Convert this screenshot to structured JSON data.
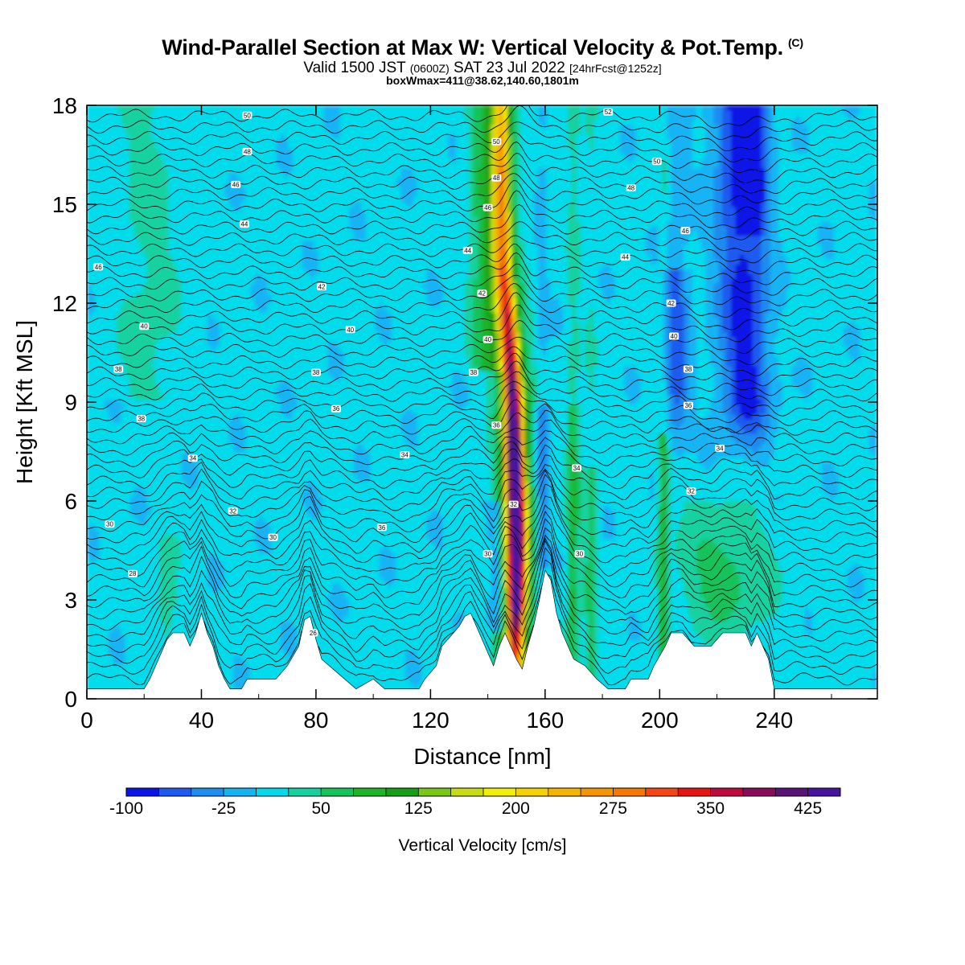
{
  "header": {
    "title": "Wind-Parallel Section at Max W: Vertical Velocity & Pot.Temp.",
    "title_mark": "(C)",
    "valid_a": "Valid 1500 JST",
    "valid_utc": "(0600Z)",
    "valid_b": "SAT 23 Jul 2022",
    "forecast": "[24hrFcst@1252z]",
    "box_info": "boxWmax=411@38.62,140.60,1801m"
  },
  "chart_data": {
    "type": "heatmap",
    "xlabel": "Distance [nm]",
    "ylabel": "Height [Kft MSL]",
    "xlim": [
      0,
      276
    ],
    "ylim": [
      0,
      18
    ],
    "x_ticks": [
      0,
      40,
      80,
      120,
      160,
      200,
      240
    ],
    "y_ticks": [
      0,
      3,
      6,
      9,
      12,
      15,
      18
    ],
    "colorbar": {
      "label": "Vertical Velocity [cm/s]",
      "min": -100,
      "max": 450,
      "step": 25,
      "tick_values": [
        -100,
        -25,
        50,
        125,
        200,
        275,
        350,
        425
      ],
      "colors": [
        "#0a14e6",
        "#1e5af0",
        "#1e8cf0",
        "#14b4f5",
        "#00dceb",
        "#14d2a0",
        "#14c35a",
        "#1eb428",
        "#14a014",
        "#78c814",
        "#c8dc14",
        "#f0f000",
        "#f5d200",
        "#f5b400",
        "#f59600",
        "#f57800",
        "#f54614",
        "#e61414",
        "#be0a3c",
        "#8c0a5a",
        "#5a1478",
        "#4614a0"
      ]
    },
    "updraft_core": [
      {
        "height": 1.2,
        "x": 149.5,
        "w": 220
      },
      {
        "height": 3,
        "x": 150,
        "w": 360
      },
      {
        "height": 5,
        "x": 150,
        "w": 410
      },
      {
        "height": 7,
        "x": 149.5,
        "w": 380
      },
      {
        "height": 9,
        "x": 149,
        "w": 330
      },
      {
        "height": 11,
        "x": 147.5,
        "w": 270
      },
      {
        "height": 13,
        "x": 145.5,
        "w": 200
      },
      {
        "height": 15,
        "x": 145,
        "w": 175
      },
      {
        "height": 18,
        "x": 145,
        "w": 150
      }
    ],
    "downdraft_core": {
      "x": 230,
      "height_range": [
        8,
        17
      ],
      "w": -90
    },
    "terrain": [
      [
        0,
        0.3
      ],
      [
        20,
        0.3
      ],
      [
        22,
        0.6
      ],
      [
        24,
        1.0
      ],
      [
        26,
        1.4
      ],
      [
        28,
        1.8
      ],
      [
        30,
        2.0
      ],
      [
        34,
        2.0
      ],
      [
        36,
        1.6
      ],
      [
        38,
        2.0
      ],
      [
        40,
        2.6
      ],
      [
        42,
        2.0
      ],
      [
        44,
        1.6
      ],
      [
        46,
        1.0
      ],
      [
        48,
        0.6
      ],
      [
        50,
        0.3
      ],
      [
        54,
        0.3
      ],
      [
        56,
        0.6
      ],
      [
        62,
        0.6
      ],
      [
        66,
        0.6
      ],
      [
        70,
        1.0
      ],
      [
        74,
        1.6
      ],
      [
        76,
        2.4
      ],
      [
        78,
        2.5
      ],
      [
        80,
        1.8
      ],
      [
        82,
        1.2
      ],
      [
        86,
        0.9
      ],
      [
        90,
        0.6
      ],
      [
        94,
        0.3
      ],
      [
        100,
        0.6
      ],
      [
        104,
        0.3
      ],
      [
        116,
        0.3
      ],
      [
        118,
        0.6
      ],
      [
        122,
        1.0
      ],
      [
        124,
        1.6
      ],
      [
        128,
        2.0
      ],
      [
        130,
        2.2
      ],
      [
        132,
        2.5
      ],
      [
        134,
        2.6
      ],
      [
        136,
        2.2
      ],
      [
        138,
        1.8
      ],
      [
        140,
        1.4
      ],
      [
        142,
        1.0
      ],
      [
        144,
        1.6
      ],
      [
        146,
        2.0
      ],
      [
        148,
        1.6
      ],
      [
        150,
        1.2
      ],
      [
        152,
        0.9
      ],
      [
        154,
        1.6
      ],
      [
        156,
        2.2
      ],
      [
        158,
        3.0
      ],
      [
        160,
        3.9
      ],
      [
        162,
        3.6
      ],
      [
        164,
        2.6
      ],
      [
        166,
        2.0
      ],
      [
        168,
        1.6
      ],
      [
        170,
        1.2
      ],
      [
        174,
        1.0
      ],
      [
        178,
        0.6
      ],
      [
        182,
        0.3
      ],
      [
        188,
        0.3
      ],
      [
        190,
        0.6
      ],
      [
        196,
        0.6
      ],
      [
        198,
        1.0
      ],
      [
        202,
        1.6
      ],
      [
        204,
        2.0
      ],
      [
        208,
        2.0
      ],
      [
        212,
        1.6
      ],
      [
        218,
        1.6
      ],
      [
        222,
        2.0
      ],
      [
        226,
        2.0
      ],
      [
        230,
        2.0
      ],
      [
        232,
        1.6
      ],
      [
        234,
        2.0
      ],
      [
        236,
        1.6
      ],
      [
        238,
        1.2
      ],
      [
        240,
        0.3
      ],
      [
        248,
        0.3
      ],
      [
        256,
        0.3
      ],
      [
        276,
        0.3
      ]
    ],
    "theta_contour_labels": [
      {
        "text": "50",
        "x": 56,
        "y": 17.7
      },
      {
        "text": "48",
        "x": 56,
        "y": 16.6
      },
      {
        "text": "46",
        "x": 52,
        "y": 15.6
      },
      {
        "text": "44",
        "x": 55,
        "y": 14.4
      },
      {
        "text": "46",
        "x": 4,
        "y": 13.1
      },
      {
        "text": "42",
        "x": 82,
        "y": 12.5
      },
      {
        "text": "40",
        "x": 20,
        "y": 11.3
      },
      {
        "text": "40",
        "x": 92,
        "y": 11.2
      },
      {
        "text": "38",
        "x": 11,
        "y": 10.0
      },
      {
        "text": "38",
        "x": 80,
        "y": 9.9
      },
      {
        "text": "38",
        "x": 19,
        "y": 8.5
      },
      {
        "text": "36",
        "x": 87,
        "y": 8.8
      },
      {
        "text": "34",
        "x": 37,
        "y": 7.3
      },
      {
        "text": "34",
        "x": 111,
        "y": 7.4
      },
      {
        "text": "32",
        "x": 51,
        "y": 5.7
      },
      {
        "text": "30",
        "x": 8,
        "y": 5.3
      },
      {
        "text": "30",
        "x": 65,
        "y": 4.9
      },
      {
        "text": "36",
        "x": 103,
        "y": 5.2
      },
      {
        "text": "28",
        "x": 16,
        "y": 3.8
      },
      {
        "text": "26",
        "x": 79,
        "y": 2.0
      },
      {
        "text": "50",
        "x": 143,
        "y": 16.9
      },
      {
        "text": "48",
        "x": 143,
        "y": 15.8
      },
      {
        "text": "46",
        "x": 140,
        "y": 14.9
      },
      {
        "text": "44",
        "x": 133,
        "y": 13.6
      },
      {
        "text": "42",
        "x": 138,
        "y": 12.3
      },
      {
        "text": "40",
        "x": 140,
        "y": 10.9
      },
      {
        "text": "38",
        "x": 135,
        "y": 9.9
      },
      {
        "text": "36",
        "x": 143,
        "y": 8.3
      },
      {
        "text": "32",
        "x": 149,
        "y": 5.9
      },
      {
        "text": "30",
        "x": 140,
        "y": 4.4
      },
      {
        "text": "34",
        "x": 171,
        "y": 7.0
      },
      {
        "text": "30",
        "x": 172,
        "y": 4.4
      },
      {
        "text": "52",
        "x": 182,
        "y": 17.8
      },
      {
        "text": "50",
        "x": 199,
        "y": 16.3
      },
      {
        "text": "48",
        "x": 190,
        "y": 15.5
      },
      {
        "text": "46",
        "x": 209,
        "y": 14.2
      },
      {
        "text": "44",
        "x": 188,
        "y": 13.4
      },
      {
        "text": "42",
        "x": 204,
        "y": 12.0
      },
      {
        "text": "40",
        "x": 205,
        "y": 11.0
      },
      {
        "text": "38",
        "x": 210,
        "y": 10.0
      },
      {
        "text": "36",
        "x": 210,
        "y": 8.9
      },
      {
        "text": "34",
        "x": 221,
        "y": 7.6
      },
      {
        "text": "32",
        "x": 211,
        "y": 6.3
      }
    ]
  }
}
